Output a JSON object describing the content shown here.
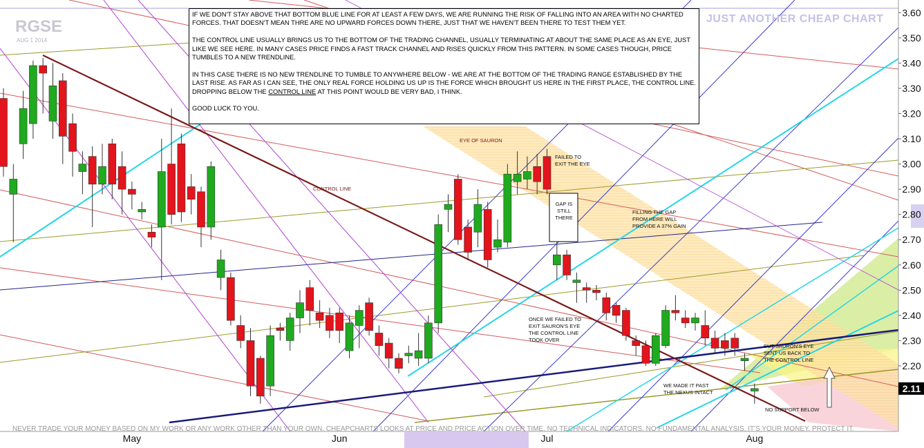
{
  "chart_data": {
    "type": "candlestick",
    "title": "RGSE",
    "subtitle": "AUG 1 2014",
    "watermark": "JUST ANOTHER CHEAP CHART",
    "categories": [
      null,
      null,
      null,
      null,
      null,
      null,
      null,
      null,
      null,
      null,
      null,
      null,
      null,
      "May",
      null,
      null,
      null,
      null,
      null,
      null,
      null,
      null,
      null,
      null,
      null,
      null,
      null,
      null,
      null,
      null,
      null,
      null,
      null,
      null,
      "Jun",
      null,
      null,
      null,
      null,
      null,
      null,
      null,
      null,
      null,
      null,
      null,
      null,
      null,
      null,
      null,
      null,
      null,
      null,
      null,
      null,
      "Jul",
      null,
      null,
      null,
      null,
      null,
      null,
      null,
      null,
      null,
      null,
      null,
      null,
      null,
      null,
      null,
      null,
      null,
      null,
      null,
      null,
      "Aug"
    ],
    "open": [
      3.26,
      2.88,
      3.08,
      3.16,
      3.39,
      3.17,
      3.33,
      3.16,
      2.97,
      3.03,
      2.92,
      3.08,
      2.99,
      2.9,
      2.81,
      2.73,
      2.75,
      3.0,
      3.08,
      2.91,
      2.89,
      2.75,
      2.55,
      2.55,
      2.36,
      2.3,
      2.23,
      2.12,
      2.35,
      2.3,
      2.39,
      2.51,
      2.41,
      2.4,
      2.41,
      2.26,
      2.36,
      2.45,
      2.33,
      2.29,
      2.23,
      2.24,
      2.23,
      2.23,
      2.37,
      2.82,
      2.94,
      2.75,
      2.73,
      2.82,
      2.67,
      2.69,
      2.93,
      2.94,
      2.99,
      3.03,
      2.6,
      2.64,
      2.53,
      2.51,
      2.5,
      2.47,
      2.44,
      2.42,
      2.3,
      2.28,
      2.21,
      2.28,
      2.42,
      2.39,
      2.37,
      2.36,
      2.31,
      2.3,
      2.31,
      2.22,
      2.1
    ],
    "high": [
      3.3,
      3.0,
      3.29,
      3.41,
      3.42,
      3.4,
      3.36,
      3.2,
      3.05,
      3.07,
      3.08,
      3.1,
      3.05,
      2.93,
      2.85,
      2.76,
      3.1,
      3.22,
      3.12,
      2.96,
      2.91,
      3.01,
      2.66,
      2.57,
      2.4,
      2.35,
      2.24,
      2.36,
      2.37,
      2.41,
      2.5,
      2.54,
      2.46,
      2.43,
      2.43,
      2.4,
      2.44,
      2.47,
      2.36,
      2.31,
      2.25,
      2.28,
      2.33,
      2.4,
      2.8,
      2.88,
      2.96,
      2.78,
      2.9,
      2.85,
      2.78,
      3.0,
      3.05,
      3.03,
      3.04,
      3.06,
      2.69,
      2.66,
      2.57,
      2.53,
      2.52,
      2.49,
      2.45,
      2.43,
      2.32,
      2.3,
      2.33,
      2.44,
      2.48,
      2.42,
      2.41,
      2.42,
      2.34,
      2.33,
      2.33,
      2.25,
      2.13
    ],
    "low": [
      2.95,
      2.69,
      3.02,
      3.1,
      3.2,
      3.1,
      3.0,
      2.95,
      2.88,
      2.75,
      2.88,
      2.86,
      2.8,
      2.82,
      2.78,
      2.67,
      2.54,
      2.76,
      2.77,
      2.8,
      2.67,
      2.7,
      2.5,
      2.36,
      2.27,
      2.08,
      2.05,
      2.08,
      2.3,
      2.26,
      2.33,
      2.36,
      2.35,
      2.31,
      2.29,
      2.23,
      2.27,
      2.32,
      2.24,
      2.19,
      2.17,
      2.21,
      2.2,
      2.21,
      2.33,
      2.73,
      2.68,
      2.62,
      2.67,
      2.59,
      2.65,
      2.67,
      2.88,
      2.9,
      2.88,
      2.88,
      2.54,
      2.54,
      2.45,
      2.45,
      2.46,
      2.38,
      2.37,
      2.3,
      2.24,
      2.2,
      2.2,
      2.27,
      2.38,
      2.35,
      2.34,
      2.28,
      2.25,
      2.24,
      2.24,
      2.18,
      2.05
    ],
    "close": [
      2.99,
      2.94,
      3.22,
      3.39,
      3.36,
      3.31,
      3.11,
      3.05,
      3.0,
      2.92,
      2.99,
      2.92,
      2.9,
      2.88,
      2.82,
      2.71,
      2.97,
      2.8,
      2.81,
      2.86,
      2.75,
      2.99,
      2.62,
      2.38,
      2.3,
      2.12,
      2.08,
      2.32,
      2.34,
      2.39,
      2.45,
      2.42,
      2.38,
      2.34,
      2.34,
      2.37,
      2.42,
      2.34,
      2.28,
      2.23,
      2.19,
      2.25,
      2.26,
      2.37,
      2.76,
      2.84,
      2.7,
      2.65,
      2.84,
      2.62,
      2.7,
      2.96,
      2.96,
      2.97,
      2.93,
      2.9,
      2.64,
      2.56,
      2.54,
      2.5,
      2.49,
      2.41,
      2.4,
      2.32,
      2.28,
      2.21,
      2.32,
      2.42,
      2.41,
      2.37,
      2.39,
      2.31,
      2.27,
      2.27,
      2.27,
      2.23,
      2.11
    ],
    "up_color": "#1faa1f",
    "down_color": "#e3141c",
    "ylim": [
      1.94,
      3.65
    ],
    "yticks": [
      {
        "value": 2.2,
        "label": "2.20"
      },
      {
        "value": 2.3,
        "label": "2.30"
      },
      {
        "value": 2.4,
        "label": "2.40"
      },
      {
        "value": 2.5,
        "label": "2.50"
      },
      {
        "value": 2.6,
        "label": "2.60"
      },
      {
        "value": 2.7,
        "label": "2.70"
      },
      {
        "value": 2.8,
        "label": "2.80"
      },
      {
        "value": 2.9,
        "label": "2.90"
      },
      {
        "value": 3.0,
        "label": "3.00"
      },
      {
        "value": 3.1,
        "label": "3.10"
      },
      {
        "value": 3.2,
        "label": "3.20"
      },
      {
        "value": 3.3,
        "label": "3.30"
      },
      {
        "value": 3.4,
        "label": "3.40"
      },
      {
        "value": 3.5,
        "label": "3.50"
      },
      {
        "value": 3.6,
        "label": "3.60"
      }
    ],
    "current_price": 2.11,
    "annotations": [
      [
        "EYE OF SAURON"
      ],
      [
        "FAILED TO",
        "EXIT THE EYE"
      ],
      [
        "CONTROL LINE"
      ],
      [
        "GAP IS",
        "STILL",
        "THERE"
      ],
      [
        "FILLING THE GAP",
        "FROM HERE WILL",
        "PROVIDE A 37% GAIN"
      ],
      [
        "ONCE WE FAILED TO",
        "EXIT SAURON'S EYE",
        "THE CONTROL LINE",
        "TOOK OVER"
      ],
      [
        "WE MADE IT PAST",
        "THE NEXUS INTACT"
      ],
      [
        "BUT SAURON'S EYE",
        "SENT US BACK TO",
        "THE CONTROL LINE"
      ],
      [
        "NO SUPPORT BELOW"
      ]
    ],
    "note_box": [
      [
        "IF WE DON'T STAY ABOVE THAT BOTTOM BLUE LINE FOR AT LEAST A FEW DAYS, WE ARE RUNNING THE RISK OF FALLING INTO AN AREA WITH NO CHARTED FORCES. THAT DOESN'T MEAN THRE ARE NO UPWARD FORCES DOWN THERE, JUST THAT WE HAVEN'T BEEN THERE TO TEST THEM YET."
      ],
      [
        "THE CONTROL LINE USUALLY BRINGS US TO THE BOTTOM OF THE TRADING CHANNEL, USUALLY TERMINATING AT ABOUT THE SAME PLACE AS AN EYE, JUST LIKE WE SEE HERE. IN MANY CASES PRICE FINDS A FAST TRACK CHANNEL AND RISES QUICKLY FROM THIS PATTERN. IN SOME CASES THOUGH, PRICE TUMBLES TO A NEW TRENDLINE."
      ],
      [
        "IN THIS CASE THERE IS NO NEW TRENDLINE TO TUMBLE TO ANYWHERE BELOW - WE ARE AT THE BOTTOM OF THE TRADING RANGE ESTABLISHED BY THE LAST RISE. AS FAR AS I CAN SEE, THE ONLY REAL FORCE HOLDING US UP IS THE FORCE WHICH BROUGHT US HERE IN THE FIRST PLACE, THE CONTROL LINE. DROPPING BELOW THE",
        "CONTROL LINE",
        "AT THIS POINT WOULD BE VERY BAD, I THINK."
      ],
      [
        "GOOD LUCK TO YOU."
      ]
    ],
    "footer": "NEVER TRADE YOUR MONEY BASED ON MY WORK OR ANY WORK OTHER THAN YOUR OWN. CHEAPCHARTS LOOKS AT PRICE AND PRICE ACTION OVER TIME. NO TECHNICAL INDICATORS. NO FUNDAMENTAL ANALYSIS. IT'S YOUR MONEY. PROTECT IT."
  }
}
